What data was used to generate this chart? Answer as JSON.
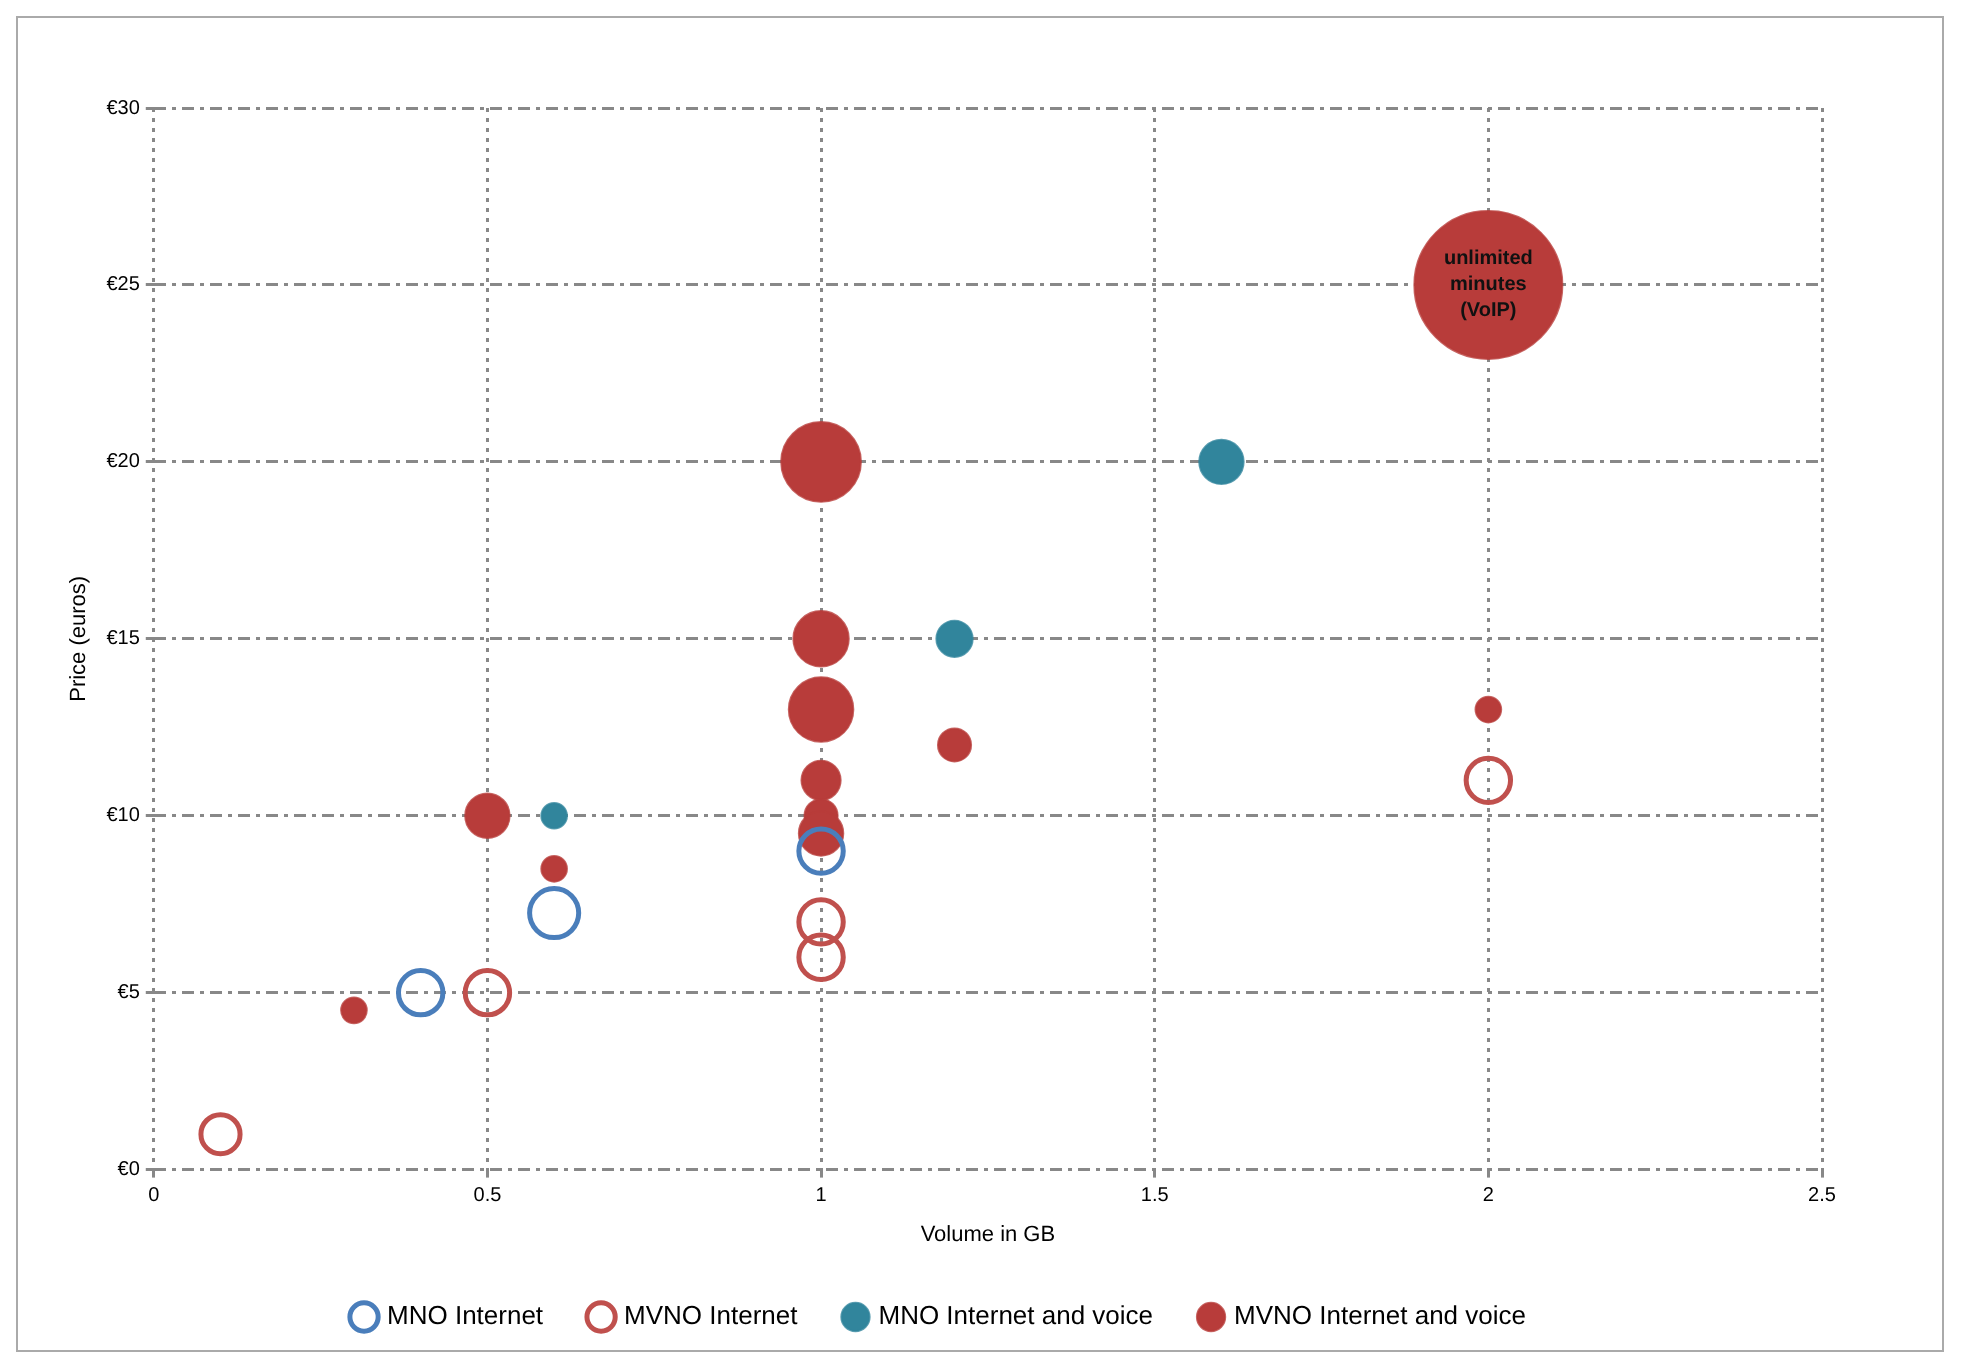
{
  "chart_data": {
    "type": "bubble",
    "xlabel": "Volume in GB",
    "ylabel": "Price (euros)",
    "xlim": [
      0,
      2.5
    ],
    "xticks": [
      0,
      0.5,
      1,
      1.5,
      2,
      2.5
    ],
    "ylim": [
      0,
      30
    ],
    "yticks": [
      {
        "value": 0,
        "label": "€0"
      },
      {
        "value": 5,
        "label": "€5"
      },
      {
        "value": 10,
        "label": "€10"
      },
      {
        "value": 15,
        "label": "€15"
      },
      {
        "value": 20,
        "label": "€20"
      },
      {
        "value": 25,
        "label": "€25"
      },
      {
        "value": 30,
        "label": "€30"
      }
    ],
    "grid": true,
    "legend": "bottom",
    "annotations": [
      {
        "text": "unlimited minutes (VoIP)",
        "x": 2,
        "y": 25
      }
    ],
    "series": [
      {
        "name": "MNO Internet",
        "color": "#4a7ebb",
        "marker": "circle",
        "x": [
          0.4,
          0.6,
          1
        ],
        "values": [
          5,
          7.25,
          9
        ],
        "sizes": [
          0.09,
          0.11,
          0.09
        ]
      },
      {
        "name": "MVNO Internet",
        "color": "#c0504d",
        "marker": "circle",
        "x": [
          0.1,
          0.5,
          1,
          1,
          2
        ],
        "values": [
          1,
          5,
          7,
          6,
          11
        ],
        "sizes": [
          0.07,
          0.09,
          0.09,
          0.09,
          0.09
        ]
      },
      {
        "name": "MNO Internet and voice",
        "color": "#31859c",
        "x": [
          0.6,
          1.2,
          1.6
        ],
        "values": [
          10,
          15,
          20
        ],
        "sizes": [
          0.03,
          0.06,
          0.09
        ]
      },
      {
        "name": "MVNO Internet and voice",
        "color": "#b83c3a",
        "x": [
          0.3,
          0.5,
          0.6,
          1,
          1,
          1,
          1,
          1,
          1,
          1.2,
          2,
          2
        ],
        "values": [
          4.5,
          10,
          8.5,
          20,
          15,
          13,
          11,
          10,
          9.5,
          12,
          13,
          25
        ],
        "sizes": [
          0.03,
          0.09,
          0.03,
          0.29,
          0.14,
          0.19,
          0.07,
          0.05,
          0.09,
          0.05,
          0.03,
          1
        ]
      }
    ]
  }
}
